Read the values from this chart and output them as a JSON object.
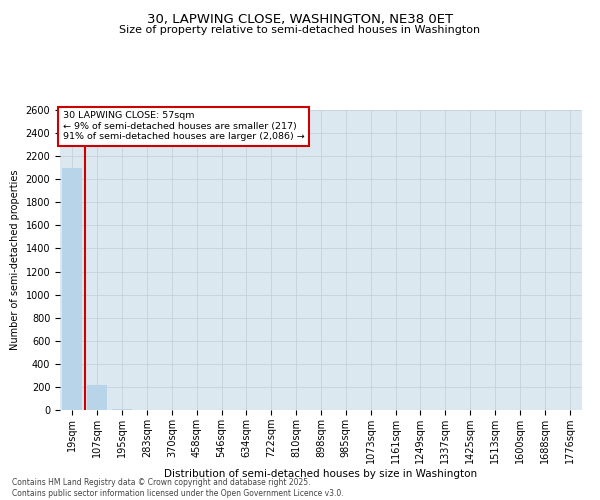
{
  "title": "30, LAPWING CLOSE, WASHINGTON, NE38 0ET",
  "subtitle": "Size of property relative to semi-detached houses in Washington",
  "xlabel": "Distribution of semi-detached houses by size in Washington",
  "ylabel": "Number of semi-detached properties",
  "annotation_title": "30 LAPWING CLOSE: 57sqm",
  "annotation_line1": "← 9% of semi-detached houses are smaller (217)",
  "annotation_line2": "91% of semi-detached houses are larger (2,086) →",
  "footer1": "Contains HM Land Registry data © Crown copyright and database right 2025.",
  "footer2": "Contains public sector information licensed under the Open Government Licence v3.0.",
  "categories": [
    "19sqm",
    "107sqm",
    "195sqm",
    "283sqm",
    "370sqm",
    "458sqm",
    "546sqm",
    "634sqm",
    "722sqm",
    "810sqm",
    "898sqm",
    "985sqm",
    "1073sqm",
    "1161sqm",
    "1249sqm",
    "1337sqm",
    "1425sqm",
    "1513sqm",
    "1600sqm",
    "1688sqm",
    "1776sqm"
  ],
  "values": [
    2100,
    217,
    6,
    0,
    0,
    0,
    0,
    0,
    0,
    0,
    0,
    0,
    0,
    0,
    0,
    0,
    0,
    0,
    0,
    0,
    0
  ],
  "bar_color": "#b8d4e8",
  "annotation_box_color": "#cc0000",
  "vline_color": "#cc0000",
  "vline_bar_index": 0,
  "background_color": "#ffffff",
  "plot_bg_color": "#dce8f0",
  "grid_color": "#c0cdd8",
  "ylim": [
    0,
    2600
  ],
  "yticks": [
    0,
    200,
    400,
    600,
    800,
    1000,
    1200,
    1400,
    1600,
    1800,
    2000,
    2200,
    2400,
    2600
  ],
  "title_fontsize": 9.5,
  "subtitle_fontsize": 8,
  "ylabel_fontsize": 7,
  "xlabel_fontsize": 7.5,
  "tick_fontsize": 7,
  "footer_fontsize": 5.5
}
